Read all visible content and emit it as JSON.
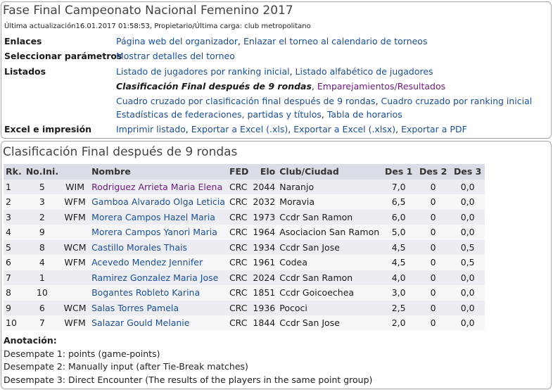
{
  "info": {
    "title": "Fase Final Campeonato Nacional Femenino 2017",
    "update_line": "Última actualización16.01.2017 01:58:53, Propietario/Última carga: club metropolitano",
    "rows": {
      "enlaces": {
        "label": "Enlaces",
        "links": [
          "Página web del organizador",
          "Enlazar el torneo al calendario de torneos"
        ]
      },
      "parametros": {
        "label": "Seleccionar parámetros",
        "links": [
          "Mostrar detalles del torneo"
        ]
      },
      "listados": {
        "label": "Listados",
        "line1": [
          "Listado de jugadores por ranking inicial",
          "Listado alfabético de jugadores"
        ],
        "current": "Clasificación Final después de 9 rondas",
        "visited": "Emparejamientos/Resultados",
        "line3": [
          "Cuadro cruzado por clasificación final después de 9 rondas",
          "Cuadro cruzado por ranking inicial"
        ],
        "line4": [
          "Estadísticas de federaciones, partidas y títulos",
          "Tabla de horarios"
        ]
      },
      "excel": {
        "label": "Excel e impresión",
        "links": [
          "Imprimir listado",
          "Exportar a Excel (.xls)",
          "Exportar a Excel (.xlsx)",
          "Exportar a PDF"
        ]
      }
    }
  },
  "ranking": {
    "title": "Clasificación Final después de 9 rondas",
    "headers": {
      "rk": "Rk.",
      "noini": "No.Ini.",
      "title": "",
      "name": "Nombre",
      "fed": "FED",
      "elo": "Elo",
      "club": "Club/Ciudad",
      "des1": "Des 1",
      "des2": "Des 2",
      "des3": "Des 3"
    },
    "rows": [
      {
        "rk": "1",
        "noini": "5",
        "title": "WIM",
        "name": "Rodriguez Arrieta Maria Elena",
        "fed": "CRC",
        "elo": "2044",
        "club": "Naranjo",
        "des1": "7,0",
        "des2": "0",
        "des3": "0,0"
      },
      {
        "rk": "2",
        "noini": "3",
        "title": "WFM",
        "name": "Gamboa Alvarado Olga Leticia",
        "fed": "CRC",
        "elo": "2032",
        "club": "Moravia",
        "des1": "6,5",
        "des2": "0",
        "des3": "0,0"
      },
      {
        "rk": "3",
        "noini": "2",
        "title": "WFM",
        "name": "Morera Campos Hazel Maria",
        "fed": "CRC",
        "elo": "1973",
        "club": "Ccdr San Ramon",
        "des1": "6,0",
        "des2": "0",
        "des3": "0,0"
      },
      {
        "rk": "4",
        "noini": "9",
        "title": "",
        "name": "Morera Campos Yanori Maria",
        "fed": "CRC",
        "elo": "1964",
        "club": "Asociacion San Ramon",
        "des1": "5,0",
        "des2": "0",
        "des3": "0,0"
      },
      {
        "rk": "5",
        "noini": "8",
        "title": "WCM",
        "name": "Castillo Morales Thais",
        "fed": "CRC",
        "elo": "1934",
        "club": "Ccdr San Jose",
        "des1": "4,5",
        "des2": "0",
        "des3": "0,5"
      },
      {
        "rk": "6",
        "noini": "4",
        "title": "WFM",
        "name": "Acevedo Mendez Jennifer",
        "fed": "CRC",
        "elo": "1961",
        "club": "Codea",
        "des1": "4,5",
        "des2": "0",
        "des3": "0,5"
      },
      {
        "rk": "7",
        "noini": "1",
        "title": "",
        "name": "Ramirez Gonzalez Maria Jose",
        "fed": "CRC",
        "elo": "2024",
        "club": "Ccdr San Ramon",
        "des1": "4,0",
        "des2": "0",
        "des3": "0,0"
      },
      {
        "rk": "8",
        "noini": "10",
        "title": "",
        "name": "Bogantes Robleto Karina",
        "fed": "CRC",
        "elo": "1851",
        "club": "Ccdr Goicoechea",
        "des1": "3,0",
        "des2": "0",
        "des3": "0,0"
      },
      {
        "rk": "9",
        "noini": "6",
        "title": "WCM",
        "name": "Salas Torres Pamela",
        "fed": "CRC",
        "elo": "1936",
        "club": "Pococi",
        "des1": "2,5",
        "des2": "0",
        "des3": "0,0"
      },
      {
        "rk": "10",
        "noini": "7",
        "title": "WFM",
        "name": "Salazar Gould Melanie",
        "fed": "CRC",
        "elo": "1844",
        "club": "Ccdr San Jose",
        "des1": "2,0",
        "des2": "0",
        "des3": "0,0"
      }
    ],
    "notes": {
      "heading": "Anotación:",
      "lines": [
        "Desempate 1: points (game-points)",
        "Desempate 2: Manually input (after Tie-Break matches)",
        "Desempate 3: Direct Encounter (The results of the players in the same point group)"
      ]
    }
  },
  "colors": {
    "link": "#1c4e96",
    "visited": "#6b1d7a",
    "header_bg": "#d9dde6",
    "row_odd": "#ecedf3",
    "row_even": "#f7f7f9",
    "border": "#a7a7a7"
  }
}
